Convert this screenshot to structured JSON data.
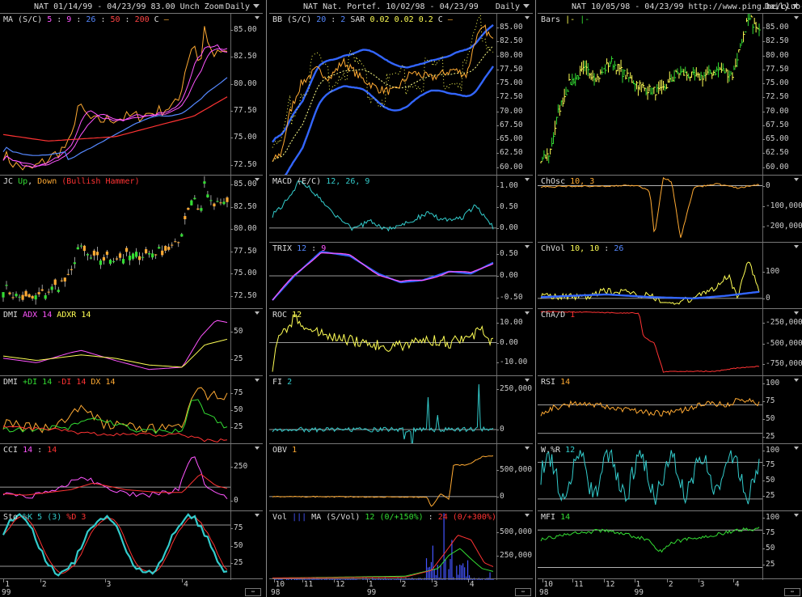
{
  "columns": [
    {
      "id": "c1",
      "header": "NAT  01/14/99 - 04/23/99   83.00  Unch    Zoom",
      "period": "Daily",
      "x_labels": [
        "1",
        "2",
        "3",
        "4"
      ],
      "year_label": "99",
      "panels": [
        {
          "id": "ma",
          "title": [
            [
              "MA (S/C) ",
              "#ddd"
            ],
            [
              "5",
              "#ff55ff"
            ],
            [
              " : ",
              "#ddd"
            ],
            [
              "9",
              "#ff55ff"
            ],
            [
              " : ",
              "#ddd"
            ],
            [
              "26",
              "#5588ff"
            ],
            [
              " : ",
              "#ddd"
            ],
            [
              "50",
              "#ff4444"
            ],
            [
              " : ",
              "#ddd"
            ],
            [
              "200",
              "#ff4444"
            ],
            [
              "   C ",
              "#ddd"
            ],
            [
              "—",
              "#ffaa33"
            ]
          ],
          "y_ticks": [
            "85.00",
            "82.50",
            "80.00",
            "77.50",
            "75.00",
            "72.50"
          ]
        },
        {
          "id": "jc",
          "title": [
            [
              "JC ",
              "#ddd"
            ],
            [
              "Up",
              "#33dd33"
            ],
            [
              ", ",
              "#ddd"
            ],
            [
              "Down",
              "#ffaa33"
            ],
            [
              "  (Bullish Hammer)",
              "#ff3333"
            ]
          ],
          "y_ticks": [
            "85.00",
            "82.50",
            "80.00",
            "77.50",
            "75.00",
            "72.50"
          ]
        },
        {
          "id": "dmi1",
          "title": [
            [
              "DMI ",
              "#ddd"
            ],
            [
              "ADX 14",
              "#ff55ff"
            ],
            [
              " ",
              "#ddd"
            ],
            [
              "ADXR 14",
              "#ffff55"
            ]
          ],
          "y_ticks": [
            "50",
            "25"
          ]
        },
        {
          "id": "dmi2",
          "title": [
            [
              "DMI ",
              "#ddd"
            ],
            [
              "+DI 14",
              "#33dd33"
            ],
            [
              " ",
              "#ddd"
            ],
            [
              "-DI 14",
              "#ff3333"
            ],
            [
              " ",
              "#ddd"
            ],
            [
              "DX 14",
              "#ffaa33"
            ]
          ],
          "y_ticks": [
            "75",
            "50",
            "25"
          ]
        },
        {
          "id": "cci",
          "title": [
            [
              "CCI ",
              "#ddd"
            ],
            [
              "14",
              "#ff55ff"
            ],
            [
              " : ",
              "#ddd"
            ],
            [
              "14",
              "#ff3333"
            ]
          ],
          "y_ticks": [
            "250",
            "0"
          ]
        },
        {
          "id": "sto",
          "title": [
            [
              "Sto ",
              "#ddd"
            ],
            [
              "%K 5 (3)",
              "#33cccc"
            ],
            [
              " ",
              "#ddd"
            ],
            [
              "%D 3",
              "#ff3333"
            ]
          ],
          "y_ticks": [
            "75",
            "50",
            "25"
          ]
        }
      ]
    },
    {
      "id": "c2",
      "header": "NAT  Nat. Portef.  10/02/98 - 04/23/99",
      "period": "Daily",
      "x_labels": [
        "10",
        "11",
        "12",
        "1",
        "2",
        "3",
        "4"
      ],
      "year_label": "98",
      "year_label2": "99",
      "panels": [
        {
          "id": "bb",
          "title": [
            [
              "BB (S/C) ",
              "#ddd"
            ],
            [
              "20",
              "#5588ff"
            ],
            [
              " : ",
              "#ddd"
            ],
            [
              "2",
              "#5588ff"
            ],
            [
              "    SAR  ",
              "#ddd"
            ],
            [
              "0.02",
              "#ffff55"
            ],
            [
              "  ",
              "#ddd"
            ],
            [
              "0.02",
              "#ffff55"
            ],
            [
              "  ",
              "#ddd"
            ],
            [
              "0.2",
              "#ffff55"
            ],
            [
              "    C ",
              "#ddd"
            ],
            [
              "—",
              "#ffaa33"
            ]
          ],
          "y_ticks": [
            "85.00",
            "82.50",
            "80.00",
            "77.50",
            "75.00",
            "72.50",
            "70.00",
            "67.50",
            "65.00",
            "62.50",
            "60.00"
          ]
        },
        {
          "id": "macd",
          "title": [
            [
              "MACD (E/C) ",
              "#ddd"
            ],
            [
              "12, 26, 9",
              "#33cccc"
            ]
          ],
          "y_ticks": [
            "1.00",
            "0.50",
            "0.00"
          ]
        },
        {
          "id": "trix",
          "title": [
            [
              "TRIX ",
              "#ddd"
            ],
            [
              "12",
              "#5588ff"
            ],
            [
              " : ",
              "#ddd"
            ],
            [
              "9",
              "#ff55ff"
            ]
          ],
          "y_ticks": [
            "0.50",
            "0.00",
            "-0.50"
          ]
        },
        {
          "id": "roc",
          "title": [
            [
              "ROC ",
              "#ddd"
            ],
            [
              "12",
              "#ffff55"
            ]
          ],
          "y_ticks": [
            "10.00",
            "0.00",
            "-10.00"
          ]
        },
        {
          "id": "fi",
          "title": [
            [
              "FI ",
              "#ddd"
            ],
            [
              "2",
              "#33cccc"
            ]
          ],
          "y_ticks": [
            "250,000",
            "0"
          ]
        },
        {
          "id": "obv",
          "title": [
            [
              "OBV ",
              "#ddd"
            ],
            [
              "1",
              "#ffaa33"
            ]
          ],
          "y_ticks": [
            "500,000",
            "0"
          ]
        },
        {
          "id": "vol",
          "title": [
            [
              "Vol ",
              "#ddd"
            ],
            [
              "|||",
              "#4455ff"
            ],
            [
              "   MA (S/Vol)  ",
              "#ddd"
            ],
            [
              "12 (0/+150%)",
              "#33dd33"
            ],
            [
              " : ",
              "#ddd"
            ],
            [
              "24 (0/+300%)",
              "#ff3333"
            ]
          ],
          "y_ticks": [
            "500,000",
            "250,000"
          ]
        }
      ]
    },
    {
      "id": "c3",
      "header": "NAT  10/05/98 - 04/23/99    http://www.ping.be/club-bourse",
      "period": "Daily",
      "x_labels": [
        "10",
        "11",
        "12",
        "1",
        "2",
        "3",
        "4"
      ],
      "year_label": "98",
      "year_label2": "99",
      "panels": [
        {
          "id": "bars",
          "title": [
            [
              "Bars ",
              "#ddd"
            ],
            [
              "|-",
              "#ffff55"
            ],
            [
              "  ",
              "#ddd"
            ],
            [
              "|-",
              "#33dd33"
            ]
          ],
          "y_ticks": [
            "85.00",
            "82.50",
            "80.00",
            "77.50",
            "75.00",
            "72.50",
            "70.00",
            "67.50",
            "65.00",
            "62.50",
            "60.00"
          ]
        },
        {
          "id": "chosc",
          "title": [
            [
              "ChOsc ",
              "#ddd"
            ],
            [
              "10, 3",
              "#ffaa33"
            ]
          ],
          "y_ticks": [
            "0",
            "-100,000",
            "-200,000"
          ]
        },
        {
          "id": "chvol",
          "title": [
            [
              "ChVol ",
              "#ddd"
            ],
            [
              "10, 10",
              "#ffff55"
            ],
            [
              " : ",
              "#ddd"
            ],
            [
              "26",
              "#5588ff"
            ]
          ],
          "y_ticks": [
            "100",
            "0"
          ]
        },
        {
          "id": "chad",
          "title": [
            [
              "ChA/D ",
              "#ddd"
            ],
            [
              "1",
              "#ff3333"
            ]
          ],
          "y_ticks": [
            "-250,000",
            "-500,000",
            "-750,000"
          ]
        },
        {
          "id": "rsi",
          "title": [
            [
              "RSI ",
              "#ddd"
            ],
            [
              "14",
              "#ffaa33"
            ]
          ],
          "y_ticks": [
            "100",
            "75",
            "50",
            "25"
          ]
        },
        {
          "id": "wr",
          "title": [
            [
              "W.%R ",
              "#ddd"
            ],
            [
              "12",
              "#33cccc"
            ]
          ],
          "y_ticks": [
            "100",
            "75",
            "50",
            "25"
          ]
        },
        {
          "id": "mfi",
          "title": [
            [
              "MFI ",
              "#ddd"
            ],
            [
              "14",
              "#33dd33"
            ]
          ],
          "y_ticks": [
            "100",
            "75",
            "50",
            "25"
          ]
        }
      ]
    }
  ]
}
